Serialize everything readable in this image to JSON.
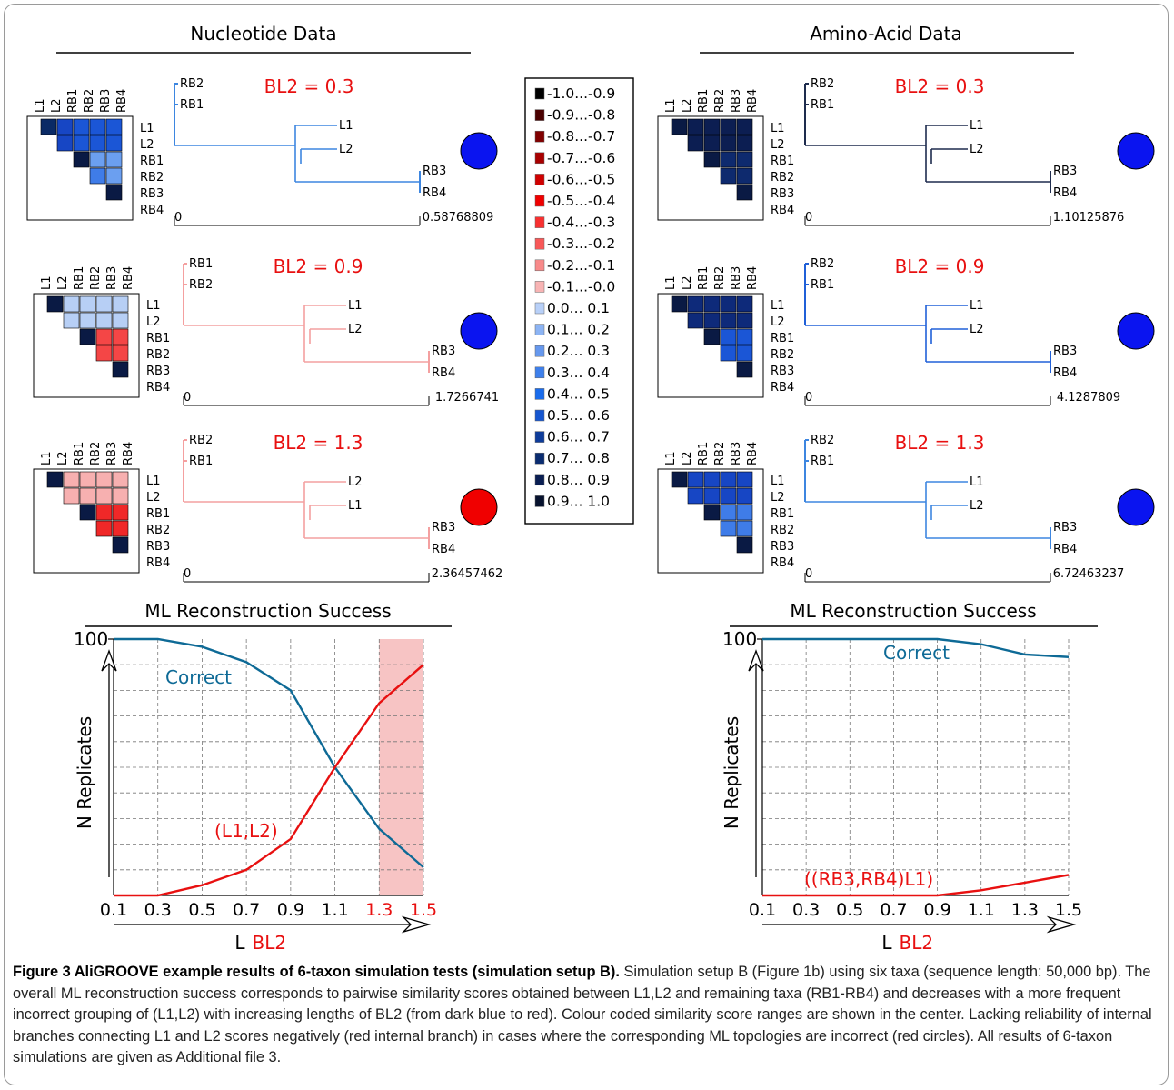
{
  "headers": {
    "nucleotide": "Nucleotide Data",
    "amino": "Amino-Acid Data"
  },
  "taxa": [
    "L1",
    "L2",
    "RB1",
    "RB2",
    "RB3",
    "RB4"
  ],
  "colors": {
    "blue": "#0a14f0",
    "red": "#f00000",
    "correct": "#0e6a96",
    "incorrect": "#e81010",
    "highlight": "#f7c4c4",
    "bl2_label": "#e81010"
  },
  "panels": [
    {
      "id": "nuc-1",
      "bl2": "BL2 = 0.3",
      "scale_min": "0",
      "scale_max": "0.58768809",
      "result": "blue",
      "matrix": [
        [
          "#0a2a66",
          "#1746c4",
          "#1b56d6",
          "#1b56d6",
          "#1b56d6"
        ],
        [
          "#1746c4",
          "#1b56d6",
          "#1b56d6",
          "#1b56d6"
        ],
        [
          "#0a1a44",
          "#6b9ff0",
          "#6b9ff0"
        ],
        [
          "#3f7ce8",
          "#6b9ff0"
        ],
        [
          "#0a1a44"
        ]
      ],
      "tree_color": "#3d86e0",
      "top_labels": [
        "RB2",
        "RB1"
      ],
      "mid_labels": [
        "L1",
        "L2"
      ],
      "end_labels": [
        "RB3",
        "RB4"
      ]
    },
    {
      "id": "nuc-2",
      "bl2": "BL2 = 0.9",
      "scale_min": "0",
      "scale_max": "1.7266741",
      "result": "blue",
      "matrix": [
        [
          "#0a1a44",
          "#b7cff5",
          "#b7cff5",
          "#b7cff5",
          "#b7cff5"
        ],
        [
          "#b7cff5",
          "#b7cff5",
          "#b7cff5",
          "#b7cff5"
        ],
        [
          "#0a1a44",
          "#f44646",
          "#f44646"
        ],
        [
          "#f44646",
          "#f44646"
        ],
        [
          "#0a1a44"
        ]
      ],
      "tree_color": "#f4a0a0",
      "top_labels": [
        "RB1",
        "RB2"
      ],
      "mid_labels": [
        "L1",
        "L2"
      ],
      "end_labels": [
        "RB3",
        "RB4"
      ]
    },
    {
      "id": "nuc-3",
      "bl2": "BL2 = 1.3",
      "scale_min": "0",
      "scale_max": "2.36457462",
      "result": "red",
      "matrix": [
        [
          "#0a1a44",
          "#f7b0b0",
          "#f7b0b0",
          "#f7b0b0",
          "#f7b0b0"
        ],
        [
          "#f7b0b0",
          "#f7b0b0",
          "#f7b0b0",
          "#f7b0b0"
        ],
        [
          "#0a1a44",
          "#f02828",
          "#f02828"
        ],
        [
          "#f02828",
          "#f02828"
        ],
        [
          "#0a1a44"
        ]
      ],
      "tree_color": "#f4a0a0",
      "top_labels": [
        "RB2",
        "RB1"
      ],
      "mid_labels": [
        "L2",
        "L1"
      ],
      "end_labels": [
        "RB3",
        "RB4"
      ]
    },
    {
      "id": "aa-1",
      "bl2": "BL2 = 0.3",
      "scale_min": "0",
      "scale_max": "1.10125876",
      "result": "blue",
      "matrix": [
        [
          "#0a1a44",
          "#0c1e52",
          "#0c1e52",
          "#0c1e52",
          "#0c1e52"
        ],
        [
          "#0c1e52",
          "#0c1e52",
          "#0c1e52",
          "#0c1e52"
        ],
        [
          "#0a1a44",
          "#0e2a6e",
          "#0e2a6e"
        ],
        [
          "#0e2a6e",
          "#0e2a6e"
        ],
        [
          "#0a1a44"
        ]
      ],
      "tree_color": "#1e2c4e",
      "top_labels": [
        "RB2",
        "RB1"
      ],
      "mid_labels": [
        "L1",
        "L2"
      ],
      "end_labels": [
        "RB3",
        "RB4"
      ]
    },
    {
      "id": "aa-2",
      "bl2": "BL2 = 0.9",
      "scale_min": "0",
      "scale_max": "4.1287809",
      "result": "blue",
      "matrix": [
        [
          "#0a1a44",
          "#0e2a7a",
          "#0e2a7a",
          "#0e2a7a",
          "#0e2a7a"
        ],
        [
          "#0e2a7a",
          "#0e2a7a",
          "#0e2a7a",
          "#0e2a7a"
        ],
        [
          "#0a1a44",
          "#1b56d6",
          "#1b56d6"
        ],
        [
          "#1b56d6",
          "#1b56d6"
        ],
        [
          "#0a1a44"
        ]
      ],
      "tree_color": "#2060d8",
      "top_labels": [
        "RB2",
        "RB1"
      ],
      "mid_labels": [
        "L1",
        "L2"
      ],
      "end_labels": [
        "RB3",
        "RB4"
      ]
    },
    {
      "id": "aa-3",
      "bl2": "BL2 = 1.3",
      "scale_min": "0",
      "scale_max": "6.72463237",
      "result": "blue",
      "matrix": [
        [
          "#0a1a44",
          "#1746c4",
          "#1746c4",
          "#1746c4",
          "#1746c4"
        ],
        [
          "#1746c4",
          "#1746c4",
          "#1746c4",
          "#1746c4"
        ],
        [
          "#0a1a44",
          "#3f7ce8",
          "#3f7ce8"
        ],
        [
          "#3f7ce8",
          "#3f7ce8"
        ],
        [
          "#0a1a44"
        ]
      ],
      "tree_color": "#3d86e0",
      "top_labels": [
        "RB2",
        "RB1"
      ],
      "mid_labels": [
        "L1",
        "L2"
      ],
      "end_labels": [
        "RB3",
        "RB4"
      ]
    }
  ],
  "legend": [
    {
      "label": "-1.0...-0.9",
      "color": "#000000"
    },
    {
      "label": "-0.9...-0.8",
      "color": "#4a0000"
    },
    {
      "label": "-0.8...-0.7",
      "color": "#800000"
    },
    {
      "label": "-0.7...-0.6",
      "color": "#a80000"
    },
    {
      "label": "-0.6...-0.5",
      "color": "#d00000"
    },
    {
      "label": "-0.5...-0.4",
      "color": "#f00000"
    },
    {
      "label": "-0.4...-0.3",
      "color": "#f83030"
    },
    {
      "label": "-0.3...-0.2",
      "color": "#f85858"
    },
    {
      "label": "-0.2...-0.1",
      "color": "#f88a8a"
    },
    {
      "label": "-0.1...-0.0",
      "color": "#f8b4b4"
    },
    {
      "label": "0.0... 0.1",
      "color": "#b8d0f8"
    },
    {
      "label": "0.1... 0.2",
      "color": "#8cb4f4"
    },
    {
      "label": "0.2... 0.3",
      "color": "#6698ee"
    },
    {
      "label": "0.3... 0.4",
      "color": "#3e80ec"
    },
    {
      "label": "0.4... 0.5",
      "color": "#1a6cec"
    },
    {
      "label": "0.5... 0.6",
      "color": "#1656d0"
    },
    {
      "label": "0.6... 0.7",
      "color": "#0e3c9a"
    },
    {
      "label": "0.7... 0.8",
      "color": "#0a2c70"
    },
    {
      "label": "0.8... 0.9",
      "color": "#0a1e52"
    },
    {
      "label": "0.9... 1.0",
      "color": "#07122e"
    }
  ],
  "chart_data": [
    {
      "type": "line",
      "title": "ML Reconstruction Success",
      "xlabel_prefix": "L",
      "xlabel": "BL2",
      "ylabel": "N Replicates",
      "x": [
        0.1,
        0.3,
        0.5,
        0.7,
        0.9,
        1.1,
        1.3,
        1.5
      ],
      "x_tick_labels": [
        "0.1",
        "0.3",
        "0.5",
        "0.7",
        "0.9",
        "1.1",
        "1.3",
        "1.5"
      ],
      "red_ticks": [
        "1.3",
        "1.5"
      ],
      "y_tick_label": "100",
      "ylim": [
        0,
        100
      ],
      "grid": true,
      "highlight_x": [
        1.3,
        1.5
      ],
      "series": [
        {
          "name": "Correct",
          "color": "#0e6a96",
          "values": [
            100,
            100,
            97,
            91,
            80,
            50,
            26,
            11
          ]
        },
        {
          "name": "(L1,L2)",
          "color": "#e81010",
          "values": [
            0,
            0,
            4,
            10,
            22,
            50,
            75,
            90
          ]
        }
      ]
    },
    {
      "type": "line",
      "title": "ML Reconstruction Success",
      "xlabel_prefix": "L",
      "xlabel": "BL2",
      "ylabel": "N Replicates",
      "x": [
        0.1,
        0.3,
        0.5,
        0.7,
        0.9,
        1.1,
        1.3,
        1.5
      ],
      "x_tick_labels": [
        "0.1",
        "0.3",
        "0.5",
        "0.7",
        "0.9",
        "1.1",
        "1.3",
        "1.5"
      ],
      "red_ticks": [],
      "y_tick_label": "100",
      "ylim": [
        0,
        100
      ],
      "grid": true,
      "highlight_x": null,
      "series": [
        {
          "name": "Correct",
          "color": "#0e6a96",
          "values": [
            100,
            100,
            100,
            100,
            100,
            98,
            94,
            93
          ]
        },
        {
          "name": "((RB3,RB4)L1)",
          "color": "#e81010",
          "values": [
            0,
            0,
            0,
            0,
            0,
            2,
            5,
            8
          ]
        }
      ]
    }
  ],
  "caption": {
    "title": "Figure 3 AliGROOVE example results of 6-taxon simulation tests (simulation setup B).",
    "text": " Simulation setup B (Figure 1b) using six taxa (sequence length: 50,000 bp). The overall ML reconstruction success corresponds to pairwise similarity scores obtained between L1,L2 and remaining taxa (RB1-RB4) and decreases with a more frequent incorrect grouping of (L1,L2) with increasing lengths of BL2 (from dark blue to red). Colour coded similarity score ranges are shown in the center. Lacking reliability of internal branches connecting L1 and L2 scores negatively (red internal branch) in cases where the corresponding ML topologies are incorrect (red circles). All results of 6-taxon simulations are given as Additional file 3."
  }
}
